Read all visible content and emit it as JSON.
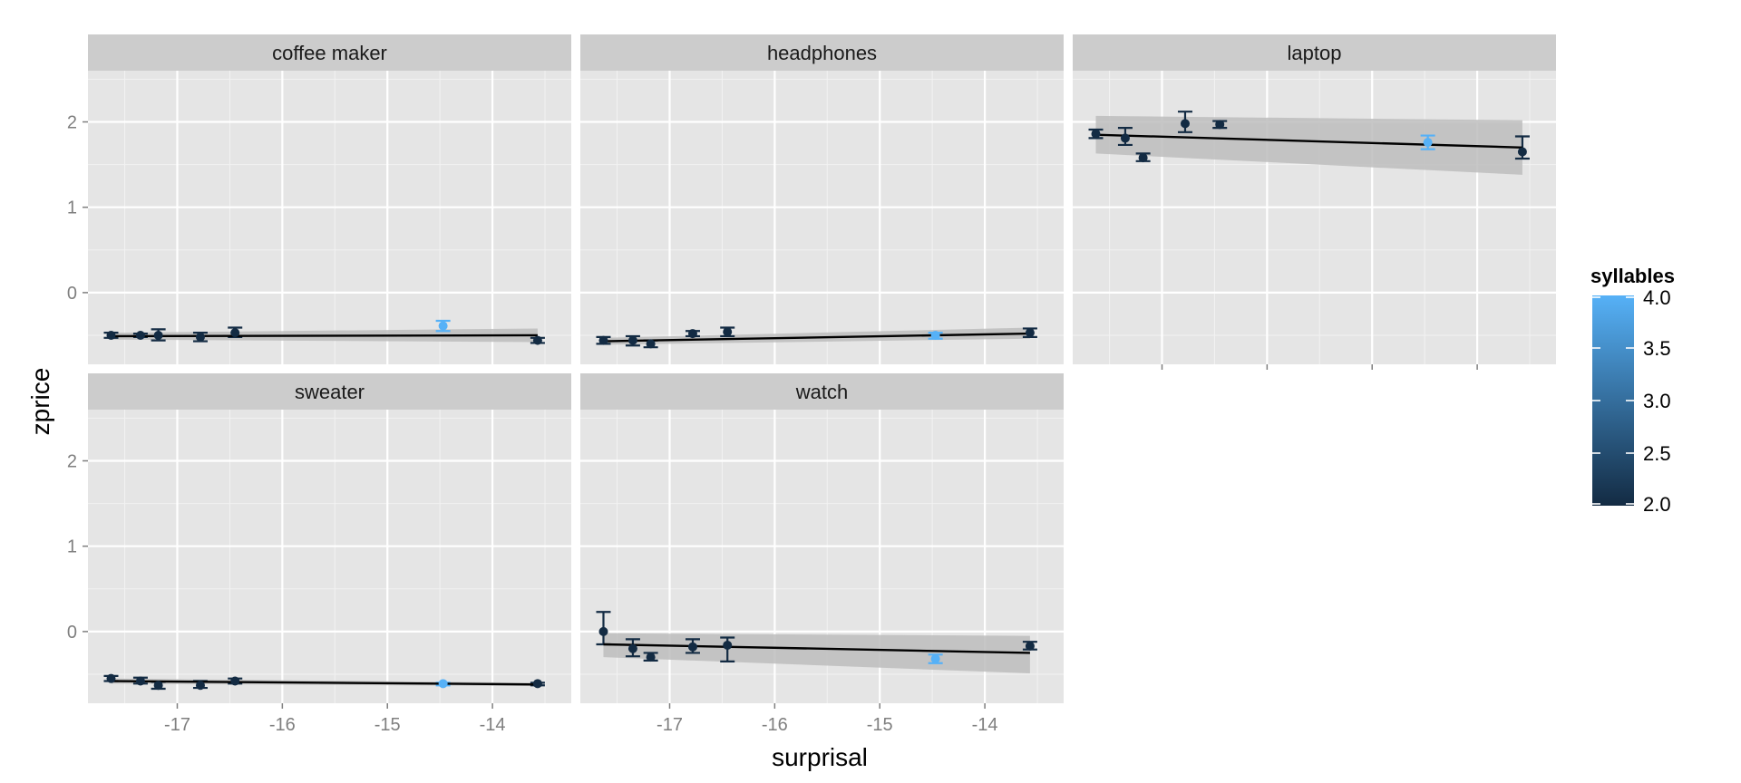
{
  "chart_data": {
    "type": "scatter",
    "xlabel": "surprisal",
    "ylabel": "zprice",
    "xlim": [
      -17.85,
      -13.25
    ],
    "ylim": [
      -0.84,
      2.6
    ],
    "x_ticks": [
      -17,
      -16,
      -15,
      -14
    ],
    "y_ticks": [
      0,
      1,
      2
    ],
    "grid": true,
    "facet_layout": "3 columns x 2 rows, shared axes",
    "colors": {
      "panel_bg": "#e5e5e5",
      "strip_bg": "#cccccc",
      "grid": "#ffffff",
      "line": "#000000",
      "ribbon": "#bdbdbd",
      "low": "#132b43",
      "high": "#56b1f7"
    },
    "legend": {
      "title": "syllables",
      "position": "right",
      "breaks": [
        "4.0",
        "3.5",
        "3.0",
        "2.5",
        "2.0"
      ],
      "range": [
        2.0,
        4.0
      ]
    },
    "panels": [
      {
        "title": "coffee maker",
        "points": [
          {
            "x": -17.63,
            "y": -0.5,
            "lo": -0.53,
            "hi": -0.47,
            "syllables": 2
          },
          {
            "x": -17.35,
            "y": -0.5,
            "lo": -0.52,
            "hi": -0.48,
            "syllables": 2
          },
          {
            "x": -17.18,
            "y": -0.5,
            "lo": -0.56,
            "hi": -0.43,
            "syllables": 2
          },
          {
            "x": -16.78,
            "y": -0.52,
            "lo": -0.57,
            "hi": -0.47,
            "syllables": 2
          },
          {
            "x": -16.45,
            "y": -0.47,
            "lo": -0.52,
            "hi": -0.41,
            "syllables": 2
          },
          {
            "x": -14.47,
            "y": -0.39,
            "lo": -0.45,
            "hi": -0.33,
            "syllables": 4
          },
          {
            "x": -13.57,
            "y": -0.56,
            "lo": -0.59,
            "hi": -0.53,
            "syllables": 2
          }
        ],
        "trend": {
          "x": [
            -17.63,
            -13.57
          ],
          "y": [
            -0.51,
            -0.5
          ]
        },
        "ribbon": {
          "lo_start": -0.55,
          "hi_start": -0.47,
          "lo_end": -0.58,
          "hi_end": -0.42
        }
      },
      {
        "title": "headphones",
        "points": [
          {
            "x": -17.63,
            "y": -0.56,
            "lo": -0.6,
            "hi": -0.52,
            "syllables": 2
          },
          {
            "x": -17.35,
            "y": -0.56,
            "lo": -0.62,
            "hi": -0.51,
            "syllables": 2
          },
          {
            "x": -17.18,
            "y": -0.6,
            "lo": -0.64,
            "hi": -0.56,
            "syllables": 2
          },
          {
            "x": -16.78,
            "y": -0.48,
            "lo": -0.51,
            "hi": -0.45,
            "syllables": 2
          },
          {
            "x": -16.45,
            "y": -0.46,
            "lo": -0.51,
            "hi": -0.41,
            "syllables": 2
          },
          {
            "x": -14.47,
            "y": -0.5,
            "lo": -0.54,
            "hi": -0.47,
            "syllables": 4
          },
          {
            "x": -13.57,
            "y": -0.47,
            "lo": -0.52,
            "hi": -0.42,
            "syllables": 2
          }
        ],
        "trend": {
          "x": [
            -17.63,
            -13.57
          ],
          "y": [
            -0.57,
            -0.48
          ]
        },
        "ribbon": {
          "lo_start": -0.61,
          "hi_start": -0.53,
          "lo_end": -0.54,
          "hi_end": -0.41
        }
      },
      {
        "title": "laptop",
        "points": [
          {
            "x": -17.63,
            "y": 1.86,
            "lo": 1.81,
            "hi": 1.91,
            "syllables": 2
          },
          {
            "x": -17.35,
            "y": 1.81,
            "lo": 1.73,
            "hi": 1.93,
            "syllables": 2
          },
          {
            "x": -17.18,
            "y": 1.58,
            "lo": 1.54,
            "hi": 1.63,
            "syllables": 2
          },
          {
            "x": -16.78,
            "y": 1.98,
            "lo": 1.88,
            "hi": 2.12,
            "syllables": 2
          },
          {
            "x": -16.45,
            "y": 1.97,
            "lo": 1.93,
            "hi": 2.01,
            "syllables": 2
          },
          {
            "x": -14.47,
            "y": 1.76,
            "lo": 1.68,
            "hi": 1.84,
            "syllables": 4
          },
          {
            "x": -13.57,
            "y": 1.65,
            "lo": 1.57,
            "hi": 1.83,
            "syllables": 2
          }
        ],
        "trend": {
          "x": [
            -17.63,
            -13.57
          ],
          "y": [
            1.85,
            1.7
          ]
        },
        "ribbon": {
          "lo_start": 1.63,
          "hi_start": 2.07,
          "lo_end": 1.38,
          "hi_end": 2.02
        }
      },
      {
        "title": "sweater",
        "points": [
          {
            "x": -17.63,
            "y": -0.55,
            "lo": -0.58,
            "hi": -0.52,
            "syllables": 2
          },
          {
            "x": -17.35,
            "y": -0.58,
            "lo": -0.61,
            "hi": -0.54,
            "syllables": 2
          },
          {
            "x": -17.18,
            "y": -0.63,
            "lo": -0.67,
            "hi": -0.59,
            "syllables": 2
          },
          {
            "x": -16.78,
            "y": -0.63,
            "lo": -0.66,
            "hi": -0.58,
            "syllables": 2
          },
          {
            "x": -16.45,
            "y": -0.58,
            "lo": -0.61,
            "hi": -0.55,
            "syllables": 2
          },
          {
            "x": -14.47,
            "y": -0.61,
            "lo": -0.63,
            "hi": -0.6,
            "syllables": 4
          },
          {
            "x": -13.57,
            "y": -0.61,
            "lo": -0.63,
            "hi": -0.6,
            "syllables": 2
          }
        ],
        "trend": {
          "x": [
            -17.63,
            -13.57
          ],
          "y": [
            -0.58,
            -0.62
          ]
        },
        "ribbon": {
          "lo_start": -0.61,
          "hi_start": -0.55,
          "lo_end": -0.64,
          "hi_end": -0.6
        }
      },
      {
        "title": "watch",
        "points": [
          {
            "x": -17.63,
            "y": 0.0,
            "lo": -0.15,
            "hi": 0.23,
            "syllables": 2
          },
          {
            "x": -17.35,
            "y": -0.2,
            "lo": -0.29,
            "hi": -0.09,
            "syllables": 2
          },
          {
            "x": -17.18,
            "y": -0.3,
            "lo": -0.34,
            "hi": -0.25,
            "syllables": 2
          },
          {
            "x": -16.78,
            "y": -0.18,
            "lo": -0.25,
            "hi": -0.09,
            "syllables": 2
          },
          {
            "x": -16.45,
            "y": -0.16,
            "lo": -0.35,
            "hi": -0.07,
            "syllables": 2
          },
          {
            "x": -14.47,
            "y": -0.32,
            "lo": -0.37,
            "hi": -0.27,
            "syllables": 4
          },
          {
            "x": -13.57,
            "y": -0.17,
            "lo": -0.21,
            "hi": -0.12,
            "syllables": 2
          }
        ],
        "trend": {
          "x": [
            -17.63,
            -13.57
          ],
          "y": [
            -0.15,
            -0.25
          ]
        },
        "ribbon": {
          "lo_start": -0.3,
          "hi_start": -0.02,
          "lo_end": -0.49,
          "hi_end": -0.05
        }
      }
    ]
  }
}
